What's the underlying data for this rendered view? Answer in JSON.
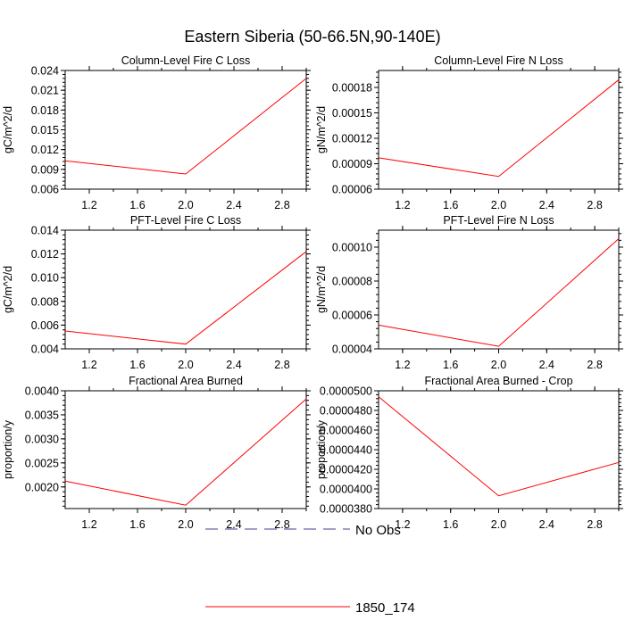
{
  "figure": {
    "title": "Eastern Siberia (50-66.5N,90-140E)",
    "legend": [
      {
        "label": "No Obs",
        "color": "#3c3c8c",
        "style": "dashed"
      },
      {
        "label": "1850_174",
        "color": "#ff0000",
        "style": "solid"
      }
    ]
  },
  "chart_data": [
    {
      "type": "line",
      "title": "Column-Level Fire C Loss",
      "ylabel": "gC/m^2/d",
      "xlim": [
        1.0,
        3.0
      ],
      "xticks": [
        1.2,
        1.6,
        2.0,
        2.4,
        2.8
      ],
      "xtick_labels": [
        "1.2",
        "1.6",
        "2.0",
        "2.4",
        "2.8"
      ],
      "ylim": [
        0.006,
        0.024
      ],
      "yticks": [
        0.006,
        0.009,
        0.012,
        0.015,
        0.018,
        0.021,
        0.024
      ],
      "ytick_labels": [
        "0.006",
        "0.009",
        "0.012",
        "0.015",
        "0.018",
        "0.021",
        "0.024"
      ],
      "series": [
        {
          "name": "1850_174",
          "color": "#ff0000",
          "x": [
            1,
            2,
            3
          ],
          "y": [
            0.0103,
            0.0083,
            0.0228
          ]
        }
      ]
    },
    {
      "type": "line",
      "title": "Column-Level Fire N Loss",
      "ylabel": "gN/m^2/d",
      "xlim": [
        1.0,
        3.0
      ],
      "xticks": [
        1.2,
        1.6,
        2.0,
        2.4,
        2.8
      ],
      "xtick_labels": [
        "1.2",
        "1.6",
        "2.0",
        "2.4",
        "2.8"
      ],
      "ylim": [
        6e-05,
        0.0002
      ],
      "yticks": [
        6e-05,
        9e-05,
        0.00012,
        0.00015,
        0.00018
      ],
      "ytick_labels": [
        "0.00006",
        "0.00009",
        "0.00012",
        "0.00015",
        "0.00018"
      ],
      "series": [
        {
          "name": "1850_174",
          "color": "#ff0000",
          "x": [
            1,
            2,
            3
          ],
          "y": [
            9.7e-05,
            7.5e-05,
            0.000189
          ]
        }
      ]
    },
    {
      "type": "line",
      "title": "PFT-Level Fire C Loss",
      "ylabel": "gC/m^2/d",
      "xlim": [
        1.0,
        3.0
      ],
      "xticks": [
        1.2,
        1.6,
        2.0,
        2.4,
        2.8
      ],
      "xtick_labels": [
        "1.2",
        "1.6",
        "2.0",
        "2.4",
        "2.8"
      ],
      "ylim": [
        0.004,
        0.014
      ],
      "yticks": [
        0.004,
        0.006,
        0.008,
        0.01,
        0.012,
        0.014
      ],
      "ytick_labels": [
        "0.004",
        "0.006",
        "0.008",
        "0.010",
        "0.012",
        "0.014"
      ],
      "series": [
        {
          "name": "1850_174",
          "color": "#ff0000",
          "x": [
            1,
            2,
            3
          ],
          "y": [
            0.0055,
            0.0044,
            0.0122
          ]
        }
      ]
    },
    {
      "type": "line",
      "title": "PFT-Level Fire N Loss",
      "ylabel": "gN/m^2/d",
      "xlim": [
        1.0,
        3.0
      ],
      "xticks": [
        1.2,
        1.6,
        2.0,
        2.4,
        2.8
      ],
      "xtick_labels": [
        "1.2",
        "1.6",
        "2.0",
        "2.4",
        "2.8"
      ],
      "ylim": [
        4e-05,
        0.00011
      ],
      "yticks": [
        4e-05,
        6e-05,
        8e-05,
        0.0001
      ],
      "ytick_labels": [
        "0.00004",
        "0.00006",
        "0.00008",
        "0.00010"
      ],
      "series": [
        {
          "name": "1850_174",
          "color": "#ff0000",
          "x": [
            1,
            2,
            3
          ],
          "y": [
            5.4e-05,
            4.15e-05,
            0.000105
          ]
        }
      ]
    },
    {
      "type": "line",
      "title": "Fractional Area Burned",
      "ylabel": "proportion/y",
      "xlim": [
        1.0,
        3.0
      ],
      "xticks": [
        1.2,
        1.6,
        2.0,
        2.4,
        2.8
      ],
      "xtick_labels": [
        "1.2",
        "1.6",
        "2.0",
        "2.4",
        "2.8"
      ],
      "ylim": [
        0.00155,
        0.004
      ],
      "yticks": [
        0.002,
        0.0025,
        0.003,
        0.0035,
        0.004
      ],
      "ytick_labels": [
        "0.0020",
        "0.0025",
        "0.0030",
        "0.0035",
        "0.0040"
      ],
      "series": [
        {
          "name": "1850_174",
          "color": "#ff0000",
          "x": [
            1,
            2,
            3
          ],
          "y": [
            0.00212,
            0.00162,
            0.00383
          ]
        }
      ]
    },
    {
      "type": "line",
      "title": "Fractional Area Burned - Crop",
      "ylabel": "proportion/y",
      "xlim": [
        1.0,
        3.0
      ],
      "xticks": [
        1.2,
        1.6,
        2.0,
        2.4,
        2.8
      ],
      "xtick_labels": [
        "1.2",
        "1.6",
        "2.0",
        "2.4",
        "2.8"
      ],
      "ylim": [
        3.8e-05,
        5e-05
      ],
      "yticks": [
        3.8e-05,
        4e-05,
        4.2e-05,
        4.4e-05,
        4.6e-05,
        4.8e-05,
        5e-05
      ],
      "ytick_labels": [
        "0.0000380",
        "0.0000400",
        "0.0000420",
        "0.0000440",
        "0.0000460",
        "0.0000480",
        "0.0000500"
      ],
      "series": [
        {
          "name": "1850_174",
          "color": "#ff0000",
          "x": [
            1,
            2,
            3
          ],
          "y": [
            4.94e-05,
            3.93e-05,
            4.27e-05
          ]
        }
      ]
    }
  ]
}
